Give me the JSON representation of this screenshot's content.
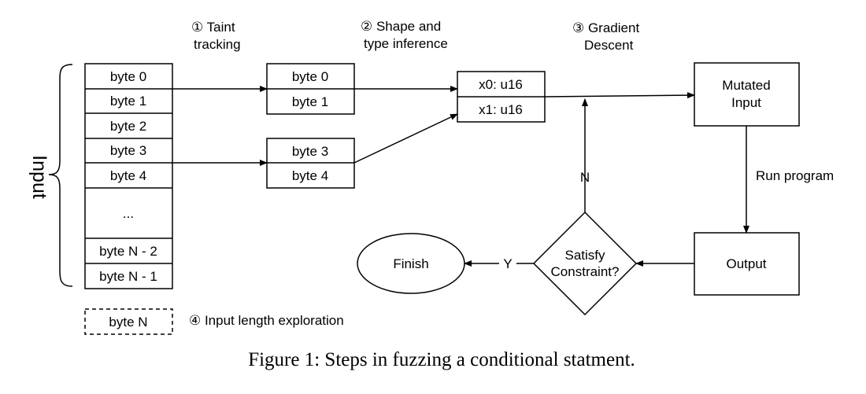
{
  "input_side_label": "Input",
  "input_bytes": [
    "byte 0",
    "byte 1",
    "byte 2",
    "byte 3",
    "byte 4",
    "...",
    "byte N - 2",
    "byte N - 1"
  ],
  "extra_byte": "byte N",
  "tainted_group_a": [
    "byte 0",
    "byte 1"
  ],
  "tainted_group_b": [
    "byte 3",
    "byte 4"
  ],
  "typed_fields": [
    "x0: u16",
    "x1: u16"
  ],
  "steps": {
    "taint": [
      "① Taint",
      "tracking"
    ],
    "shape": [
      "② Shape and",
      "type inference"
    ],
    "gradient": [
      "③ Gradient",
      "Descent"
    ],
    "length": "④ Input length exploration"
  },
  "nodes": {
    "mutated": [
      "Mutated",
      "Input"
    ],
    "output": "Output",
    "satisfy": [
      "Satisfy",
      "Constraint?"
    ],
    "finish": "Finish"
  },
  "edge_labels": {
    "run": "Run program",
    "no": "N",
    "yes": "Y"
  },
  "caption": "Figure 1: Steps in fuzzing a conditional statment."
}
